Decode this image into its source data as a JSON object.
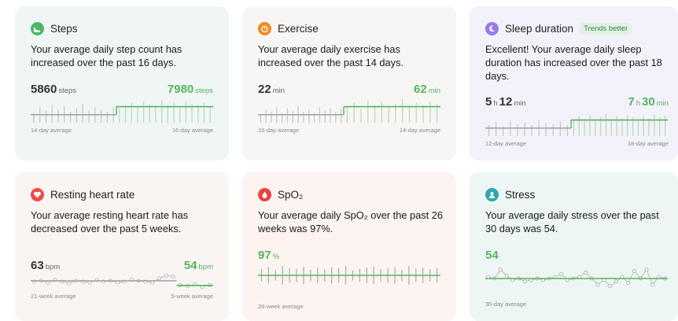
{
  "colors": {
    "green": "#56b45e",
    "gray": "#9a9a9a",
    "steps_icon": "#4cb868",
    "exercise_icon": "#f08a28",
    "sleep_icon": "#9b7ae6",
    "heart_icon": "#ef4c46",
    "spo2_icon": "#e8463c",
    "stress_icon": "#2aa9b0"
  },
  "cards": {
    "steps": {
      "icon": "shoe-icon",
      "title": "Steps",
      "desc": "Your average daily step count has increased over the past 16 days.",
      "left_value": "5860",
      "left_unit": "steps",
      "right_value": "7980",
      "right_unit": "steps",
      "left_label": "14-day average",
      "right_label": "16-day average",
      "left_bars": [
        0.45,
        0.7,
        0.55,
        0.8,
        0.6,
        0.75,
        0.5,
        0.65,
        0.85,
        0.55,
        0.7,
        0.6,
        0.5,
        0.7
      ],
      "right_bars": [
        0.6,
        0.75,
        0.85,
        0.7,
        0.9,
        0.8,
        0.65,
        0.95,
        0.75,
        0.85,
        0.7,
        0.9,
        0.8,
        0.75,
        0.85,
        0.7
      ]
    },
    "exercise": {
      "icon": "timer-icon",
      "title": "Exercise",
      "desc": "Your average daily exercise has increased over the past 14 days.",
      "left_value": "22",
      "left_unit": "min",
      "right_value": "62",
      "right_unit": "min",
      "left_label": "16-day average",
      "right_label": "14-day average",
      "left_bars": [
        0.4,
        0.6,
        0.5,
        0.7,
        0.45,
        0.65,
        0.55,
        0.75,
        0.5,
        0.6,
        0.45,
        0.7,
        0.55,
        0.65,
        0.5,
        0.6
      ],
      "right_bars": [
        0.7,
        0.85,
        0.6,
        0.95,
        0.75,
        0.9,
        0.65,
        0.8,
        1.0,
        0.7,
        0.85,
        0.75,
        0.9,
        0.8
      ]
    },
    "sleep": {
      "icon": "moon-icon",
      "title": "Sleep duration",
      "badge": "Trends better",
      "desc": "Excellent! Your average daily sleep duration has increased over the past 18 days.",
      "left_hours": "5",
      "left_h_unit": "h",
      "left_min": "12",
      "left_m_unit": "min",
      "right_hours": "7",
      "right_h_unit": "h",
      "right_min": "30",
      "right_m_unit": "min",
      "left_label": "12-day average",
      "right_label": "18-day average",
      "left_bars": [
        0.5,
        0.65,
        0.45,
        0.7,
        0.55,
        0.6,
        0.5,
        0.75,
        0.6,
        0.55,
        0.65,
        0.5
      ],
      "right_bars": [
        0.7,
        0.85,
        0.75,
        0.9,
        0.65,
        0.8,
        0.95,
        0.7,
        0.85,
        0.75,
        0.9,
        0.8,
        0.7,
        0.85,
        0.75,
        0.9,
        0.8,
        0.85
      ]
    },
    "heart": {
      "icon": "heart-icon",
      "title": "Resting heart rate",
      "desc": "Your average resting heart rate has decreased over the past 5 weeks.",
      "left_value": "63",
      "left_unit": "bpm",
      "right_value": "54",
      "right_unit": "bpm",
      "left_label": "21-week average",
      "right_label": "5-week average",
      "left_points": [
        0.5,
        0.55,
        0.45,
        0.6,
        0.5,
        0.4,
        0.55,
        0.5,
        0.45,
        0.6,
        0.5,
        0.55,
        0.45,
        0.5,
        0.6,
        0.55,
        0.5,
        0.45,
        0.7,
        0.85,
        0.8
      ],
      "right_points": [
        0.3,
        0.25,
        0.35,
        0.2,
        0.3
      ]
    },
    "spo2": {
      "icon": "drop-icon",
      "title": "SpO₂",
      "desc": "Your average daily SpO₂ over the past 26 weeks was 97%.",
      "value": "97",
      "unit": "%",
      "label": "26-week average",
      "bars": [
        0.6,
        0.8,
        0.5,
        0.9,
        0.7,
        0.65,
        0.85,
        0.55,
        0.75,
        0.6,
        0.8,
        0.7,
        0.9,
        0.5,
        0.65,
        0.75,
        0.85,
        0.6,
        0.7,
        0.8,
        0.55,
        0.9,
        0.65,
        0.75,
        0.6,
        0.7
      ]
    },
    "stress": {
      "icon": "face-icon",
      "title": "Stress",
      "desc": "Your average daily stress over the past 30 days was 54.",
      "value": "54",
      "label": "30-day average",
      "points": [
        0.55,
        0.5,
        0.8,
        0.6,
        0.45,
        0.5,
        0.4,
        0.45,
        0.5,
        0.45,
        0.5,
        0.55,
        0.65,
        0.45,
        0.5,
        0.55,
        0.7,
        0.5,
        0.3,
        0.45,
        0.25,
        0.4,
        0.55,
        0.35,
        0.75,
        0.5,
        0.8,
        0.3,
        0.55,
        0.5
      ]
    }
  }
}
